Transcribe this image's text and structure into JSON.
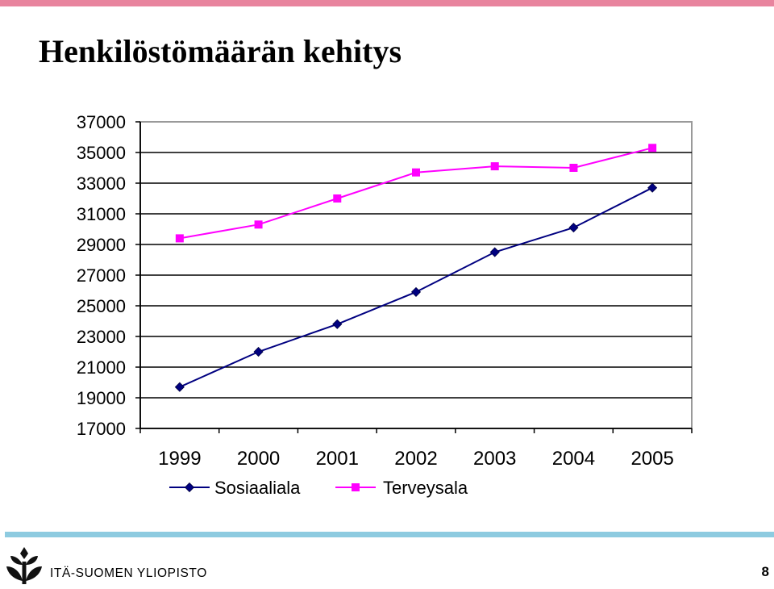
{
  "slide": {
    "title": "Henkilöstömäärän kehitys",
    "footer_org": "ITÄ-SUOMEN YLIOPISTO",
    "page_number": "8"
  },
  "colors": {
    "top_stripe": "#e8849e",
    "bottom_stripe": "#8ecbe0",
    "logo": "#111111",
    "series_sosiaaliala": "#000080",
    "series_terveysala": "#ff00ff",
    "gridline": "#000000"
  },
  "icons": {
    "logo": "university-logo-icon",
    "sosiaaliala_marker": "diamond-marker-icon",
    "terveysala_marker": "square-marker-icon"
  },
  "chart_data": {
    "type": "line",
    "title": "",
    "xlabel": "",
    "ylabel": "",
    "categories": [
      "1999",
      "2000",
      "2001",
      "2002",
      "2003",
      "2004",
      "2005"
    ],
    "ylim": [
      17000,
      37000
    ],
    "yticks": [
      "37000",
      "35000",
      "33000",
      "31000",
      "29000",
      "27000",
      "25000",
      "23000",
      "21000",
      "19000",
      "17000"
    ],
    "grid": true,
    "legend_position": "bottom",
    "series": [
      {
        "name": "Sosiaaliala",
        "marker": "diamond",
        "color": "#000080",
        "values": [
          19700,
          22000,
          23800,
          25900,
          28500,
          30100,
          32700
        ]
      },
      {
        "name": "Terveysala",
        "marker": "square",
        "color": "#ff00ff",
        "values": [
          29400,
          30300,
          32000,
          33700,
          34100,
          34000,
          35300
        ]
      }
    ]
  }
}
